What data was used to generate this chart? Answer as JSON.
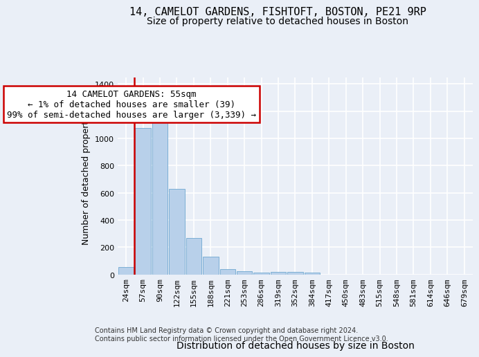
{
  "title1": "14, CAMELOT GARDENS, FISHTOFT, BOSTON, PE21 9RP",
  "title2": "Size of property relative to detached houses in Boston",
  "xlabel": "Distribution of detached houses by size in Boston",
  "ylabel": "Number of detached properties",
  "categories": [
    "24sqm",
    "57sqm",
    "90sqm",
    "122sqm",
    "155sqm",
    "188sqm",
    "221sqm",
    "253sqm",
    "286sqm",
    "319sqm",
    "352sqm",
    "384sqm",
    "417sqm",
    "450sqm",
    "483sqm",
    "515sqm",
    "548sqm",
    "581sqm",
    "614sqm",
    "646sqm",
    "679sqm"
  ],
  "values": [
    55,
    1075,
    1160,
    630,
    270,
    130,
    40,
    22,
    15,
    20,
    20,
    15,
    0,
    0,
    0,
    0,
    0,
    0,
    0,
    0,
    0
  ],
  "bar_color": "#b8d0ea",
  "bar_edge_color": "#6fa8d0",
  "annotation_text": "14 CAMELOT GARDENS: 55sqm\n← 1% of detached houses are smaller (39)\n99% of semi-detached houses are larger (3,339) →",
  "annotation_box_color": "#ffffff",
  "annotation_box_edge_color": "#cc0000",
  "vline_color": "#cc0000",
  "bg_color": "#eaeff7",
  "plot_bg_color": "#eaeff7",
  "grid_color": "#ffffff",
  "ylim": [
    0,
    1450
  ],
  "yticks": [
    0,
    200,
    400,
    600,
    800,
    1000,
    1200,
    1400
  ],
  "footer_text": "Contains HM Land Registry data © Crown copyright and database right 2024.\nContains public sector information licensed under the Open Government Licence v3.0.",
  "title_fontsize": 11,
  "subtitle_fontsize": 10,
  "xlabel_fontsize": 10,
  "ylabel_fontsize": 9,
  "tick_fontsize": 8,
  "annotation_fontsize": 9,
  "footer_fontsize": 7
}
